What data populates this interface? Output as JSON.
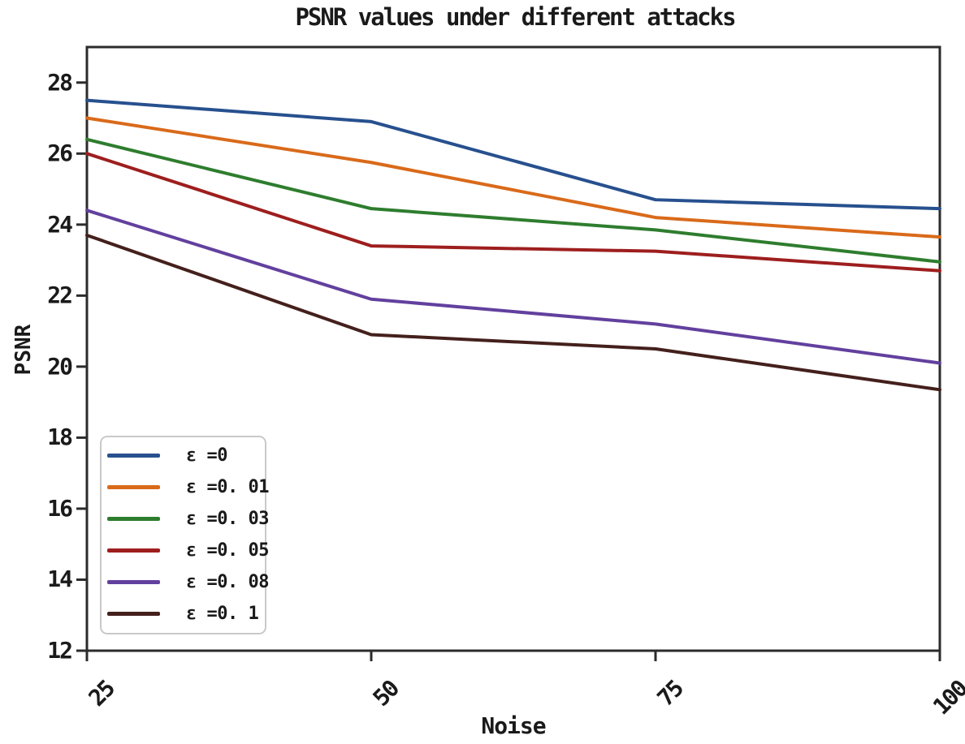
{
  "chart_data": {
    "type": "line",
    "title": "PSNR values under different attacks",
    "xlabel": "Noise",
    "ylabel": "PSNR",
    "x": [
      25,
      50,
      75,
      100
    ],
    "xtick_labels": [
      "25",
      "50",
      "75",
      "100"
    ],
    "ytick_values": [
      28,
      26,
      24,
      22,
      20,
      18,
      16,
      14,
      12
    ],
    "xlim": [
      25,
      100
    ],
    "ylim": [
      12,
      29
    ],
    "grid": false,
    "legend_position": "lower-left",
    "series": [
      {
        "name": "ε =0",
        "color": "#27508e",
        "values": [
          27.5,
          26.9,
          24.7,
          24.45
        ]
      },
      {
        "name": "ε =0. 01",
        "color": "#d96a1a",
        "values": [
          27.0,
          25.75,
          24.2,
          23.65
        ]
      },
      {
        "name": "ε =0. 03",
        "color": "#2e7d2e",
        "values": [
          26.4,
          24.45,
          23.85,
          22.95
        ]
      },
      {
        "name": "ε =0. 05",
        "color": "#9e1e1e",
        "values": [
          26.0,
          23.4,
          23.25,
          22.7
        ]
      },
      {
        "name": "ε =0. 08",
        "color": "#62409e",
        "values": [
          24.4,
          21.9,
          21.2,
          20.1
        ]
      },
      {
        "name": "ε =0. 1",
        "color": "#44201c",
        "values": [
          23.7,
          20.9,
          20.5,
          19.35
        ]
      }
    ],
    "colors": {
      "spine": "#2b2b2b",
      "text": "#1a1a1a",
      "legend_border": "#c9c9c9",
      "background": "#ffffff"
    }
  }
}
